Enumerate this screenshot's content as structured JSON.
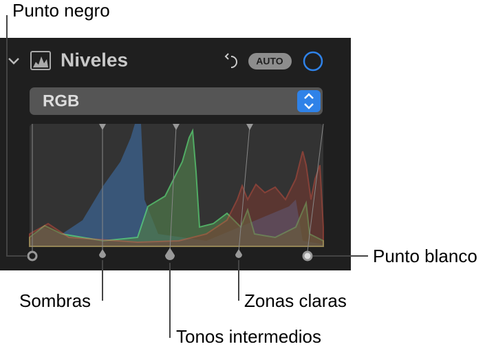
{
  "panel": {
    "title": "Niveles",
    "auto_button": "AUTO",
    "channel": "RGB"
  },
  "callouts": {
    "black_point": "Punto negro",
    "white_point": "Punto blanco",
    "shadows": "Sombras",
    "midtones": "Tonos intermedios",
    "highlights": "Zonas claras"
  }
}
